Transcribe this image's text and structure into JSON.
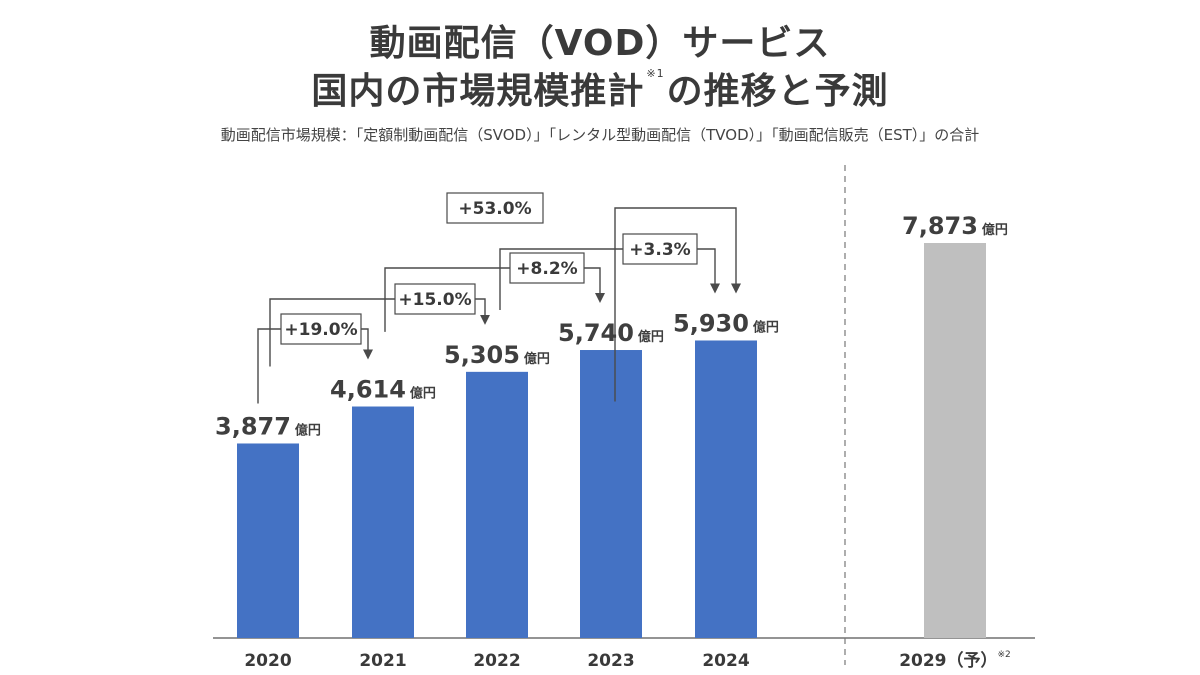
{
  "title_line1": "動画配信（VOD）サービス",
  "title_line2_main": "国内の市場規模推計",
  "title_line2_note": "※1",
  "title_line2_tail": "の推移と予測",
  "subtitle": "動画配信市場規模：「定額制動画配信（SVOD）」「レンタル型動画配信（TVOD）」「動画配信販売（EST）」の合計",
  "colors": {
    "actual_bar": "#4472c4",
    "forecast_bar": "#bfbfbf",
    "annotation": "#4a4a4a"
  },
  "chart_data": {
    "type": "bar",
    "categories": [
      "2020",
      "2021",
      "2022",
      "2023",
      "2024",
      "2029"
    ],
    "category_labels": [
      "2020",
      "2021",
      "2022",
      "2023",
      "2024",
      "2029（予）"
    ],
    "forecast_note": "※2",
    "values": [
      3877,
      4614,
      5305,
      5740,
      5930,
      7873
    ],
    "value_labels": [
      "3,877",
      "4,614",
      "5,305",
      "5,740",
      "5,930",
      "7,873"
    ],
    "unit": "億円",
    "forecast_index": 5,
    "ylim": [
      0,
      7873
    ],
    "growth": [
      {
        "from": 0,
        "to": 1,
        "label": "+19.0%"
      },
      {
        "from": 1,
        "to": 2,
        "label": "+15.0%"
      },
      {
        "from": 2,
        "to": 3,
        "label": "+8.2%"
      },
      {
        "from": 3,
        "to": 4,
        "label": "+3.3%"
      },
      {
        "from": 0,
        "to": 4,
        "label": "+53.0%"
      }
    ],
    "grid": false,
    "legend": "none"
  }
}
